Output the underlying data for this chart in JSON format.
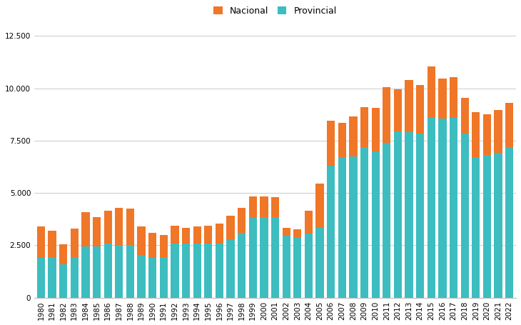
{
  "years": [
    1980,
    1981,
    1982,
    1983,
    1984,
    1985,
    1986,
    1987,
    1988,
    1989,
    1990,
    1991,
    1992,
    1993,
    1994,
    1995,
    1996,
    1997,
    1998,
    1999,
    2000,
    2001,
    2002,
    2003,
    2004,
    2005,
    2006,
    2007,
    2008,
    2009,
    2010,
    2011,
    2012,
    2013,
    2014,
    2015,
    2016,
    2017,
    2018,
    2019,
    2020,
    2021,
    2022
  ],
  "provincial": [
    1900,
    1950,
    1600,
    1900,
    2450,
    2450,
    2600,
    2500,
    2500,
    2050,
    1950,
    1950,
    2600,
    2600,
    2600,
    2600,
    2600,
    2800,
    3100,
    3800,
    3850,
    3850,
    2950,
    2900,
    3050,
    3350,
    6300,
    6700,
    6750,
    7200,
    7000,
    7400,
    7950,
    7900,
    7850,
    8600,
    8550,
    8600,
    7850,
    6700,
    6800,
    6900,
    7200
  ],
  "nacional": [
    1500,
    1250,
    950,
    1400,
    1650,
    1400,
    1550,
    1800,
    1750,
    1350,
    1150,
    1050,
    850,
    750,
    800,
    850,
    950,
    1100,
    1200,
    1050,
    1000,
    950,
    380,
    380,
    1100,
    2100,
    2150,
    1650,
    1900,
    1900,
    2050,
    2650,
    2000,
    2500,
    2300,
    2450,
    1900,
    1950,
    1700,
    2150,
    1950,
    2050,
    2100
  ],
  "color_provincial": "#3dbdc0",
  "color_nacional": "#f07628",
  "background_color": "#ffffff",
  "grid_color": "#cccccc",
  "ylim": [
    0,
    13000
  ],
  "yticks": [
    0,
    2500,
    5000,
    7500,
    10000,
    12500
  ],
  "legend_labels_order": [
    "Nacional",
    "Provincial"
  ],
  "tick_fontsize": 7.5
}
